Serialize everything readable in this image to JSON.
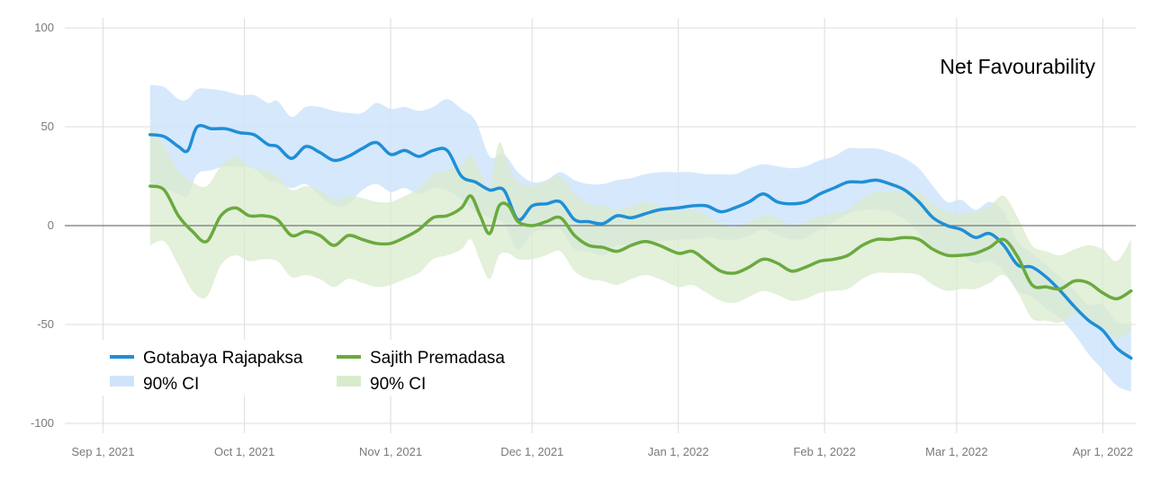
{
  "chart_data": {
    "type": "line",
    "title": "Net Favourability",
    "xlabel": "",
    "ylabel": "",
    "xlim": [
      "2021-09-01",
      "2022-04-08"
    ],
    "ylim": [
      -105,
      105
    ],
    "yticks": [
      100,
      50,
      0,
      -50,
      -100
    ],
    "ytick_labels": [
      "100",
      "50",
      "0",
      "-50",
      "-100"
    ],
    "xticks": [
      "2021-09-01",
      "2021-10-01",
      "2021-11-01",
      "2021-12-01",
      "2022-01-01",
      "2022-02-01",
      "2022-03-01",
      "2022-04-01"
    ],
    "xtick_labels": [
      "Sep 1, 2021",
      "Oct 1, 2021",
      "Nov 1, 2021",
      "Dec 1, 2021",
      "Jan 1, 2022",
      "Feb 1, 2022",
      "Mar 1, 2022",
      "Apr 1, 2022"
    ],
    "grid": true,
    "zero_line": true,
    "legend_position": "bottom-left",
    "series": [
      {
        "name": "Gotabaya Rajapaksa",
        "color": "#1f8fd6",
        "ci_label": "90% CI",
        "ci_color": "#cfe4fb",
        "x": [
          "2021-09-11",
          "2021-09-14",
          "2021-09-17",
          "2021-09-19",
          "2021-09-21",
          "2021-09-24",
          "2021-09-27",
          "2021-09-30",
          "2021-10-03",
          "2021-10-06",
          "2021-10-08",
          "2021-10-11",
          "2021-10-14",
          "2021-10-17",
          "2021-10-20",
          "2021-10-23",
          "2021-10-26",
          "2021-10-29",
          "2021-11-01",
          "2021-11-04",
          "2021-11-07",
          "2021-11-10",
          "2021-11-13",
          "2021-11-16",
          "2021-11-19",
          "2021-11-22",
          "2021-11-25",
          "2021-11-28",
          "2021-12-01",
          "2021-12-04",
          "2021-12-07",
          "2021-12-10",
          "2021-12-13",
          "2021-12-16",
          "2021-12-19",
          "2021-12-22",
          "2021-12-25",
          "2021-12-28",
          "2022-01-01",
          "2022-01-04",
          "2022-01-07",
          "2022-01-10",
          "2022-01-13",
          "2022-01-16",
          "2022-01-19",
          "2022-01-22",
          "2022-01-25",
          "2022-01-28",
          "2022-01-31",
          "2022-02-03",
          "2022-02-06",
          "2022-02-09",
          "2022-02-12",
          "2022-02-15",
          "2022-02-18",
          "2022-02-21",
          "2022-02-24",
          "2022-02-27",
          "2022-03-02",
          "2022-03-05",
          "2022-03-08",
          "2022-03-11",
          "2022-03-14",
          "2022-03-17",
          "2022-03-20",
          "2022-03-23",
          "2022-03-26",
          "2022-03-29",
          "2022-04-01",
          "2022-04-04",
          "2022-04-07"
        ],
        "values": [
          46,
          45,
          40,
          38,
          50,
          49,
          49,
          47,
          46,
          41,
          40,
          34,
          40,
          37,
          33,
          35,
          39,
          42,
          36,
          38,
          35,
          38,
          38,
          25,
          22,
          18,
          18,
          3,
          10,
          11,
          12,
          3,
          2,
          1,
          5,
          4,
          6,
          8,
          9,
          10,
          10,
          7,
          9,
          12,
          16,
          12,
          11,
          12,
          16,
          19,
          22,
          22,
          23,
          21,
          18,
          12,
          4,
          0,
          -2,
          -6,
          -4,
          -10,
          -20,
          -21,
          -26,
          -33,
          -41,
          -48,
          -53,
          -62,
          -67
        ],
        "ci_upper": [
          71,
          70,
          64,
          64,
          69,
          69,
          68,
          66,
          66,
          62,
          63,
          55,
          60,
          60,
          58,
          57,
          57,
          62,
          59,
          60,
          58,
          60,
          64,
          59,
          53,
          35,
          36,
          27,
          22,
          23,
          27,
          23,
          21,
          21,
          23,
          24,
          26,
          27,
          27,
          27,
          26,
          26,
          26,
          29,
          31,
          30,
          29,
          30,
          33,
          35,
          39,
          39,
          39,
          37,
          34,
          29,
          20,
          12,
          13,
          8,
          12,
          7,
          -8,
          -14,
          -20,
          -26,
          -33,
          -40,
          -40,
          -49,
          -49
        ],
        "ci_lower": [
          22,
          19,
          16,
          15,
          26,
          28,
          30,
          30,
          29,
          23,
          22,
          19,
          21,
          15,
          10,
          11,
          18,
          21,
          17,
          19,
          16,
          19,
          18,
          13,
          7,
          4,
          1,
          -12,
          -4,
          -2,
          -2,
          -12,
          -13,
          -15,
          -10,
          -10,
          -9,
          -8,
          -7,
          -7,
          -6,
          -7,
          -7,
          -5,
          -2,
          -5,
          -7,
          -6,
          -2,
          2,
          6,
          8,
          8,
          7,
          3,
          -4,
          -12,
          -14,
          -15,
          -19,
          -18,
          -23,
          -33,
          -36,
          -42,
          -47,
          -55,
          -65,
          -73,
          -81,
          -84
        ]
      },
      {
        "name": "Sajith Premadasa",
        "color": "#6aaa3e",
        "ci_label": "90% CI",
        "ci_color": "#d9ebcd",
        "x": [
          "2021-09-11",
          "2021-09-14",
          "2021-09-17",
          "2021-09-20",
          "2021-09-23",
          "2021-09-26",
          "2021-09-29",
          "2021-10-02",
          "2021-10-05",
          "2021-10-08",
          "2021-10-11",
          "2021-10-14",
          "2021-10-17",
          "2021-10-20",
          "2021-10-23",
          "2021-10-26",
          "2021-10-29",
          "2021-11-01",
          "2021-11-04",
          "2021-11-07",
          "2021-11-10",
          "2021-11-13",
          "2021-11-16",
          "2021-11-18",
          "2021-11-20",
          "2021-11-22",
          "2021-11-24",
          "2021-11-26",
          "2021-11-28",
          "2021-12-01",
          "2021-12-04",
          "2021-12-07",
          "2021-12-10",
          "2021-12-13",
          "2021-12-16",
          "2021-12-19",
          "2021-12-22",
          "2021-12-25",
          "2021-12-28",
          "2022-01-01",
          "2022-01-04",
          "2022-01-07",
          "2022-01-10",
          "2022-01-13",
          "2022-01-16",
          "2022-01-19",
          "2022-01-22",
          "2022-01-25",
          "2022-01-28",
          "2022-01-31",
          "2022-02-03",
          "2022-02-06",
          "2022-02-09",
          "2022-02-12",
          "2022-02-15",
          "2022-02-18",
          "2022-02-21",
          "2022-02-24",
          "2022-02-27",
          "2022-03-02",
          "2022-03-05",
          "2022-03-08",
          "2022-03-11",
          "2022-03-14",
          "2022-03-17",
          "2022-03-20",
          "2022-03-23",
          "2022-03-26",
          "2022-03-29",
          "2022-04-01",
          "2022-04-04",
          "2022-04-07"
        ],
        "values": [
          20,
          18,
          5,
          -3,
          -8,
          5,
          9,
          5,
          5,
          3,
          -5,
          -3,
          -5,
          -10,
          -5,
          -7,
          -9,
          -9,
          -6,
          -2,
          4,
          5,
          9,
          15,
          5,
          -4,
          10,
          10,
          2,
          0,
          2,
          4,
          -5,
          -10,
          -11,
          -13,
          -10,
          -8,
          -10,
          -14,
          -13,
          -18,
          -23,
          -24,
          -21,
          -17,
          -19,
          -23,
          -21,
          -18,
          -17,
          -15,
          -10,
          -7,
          -7,
          -6,
          -7,
          -12,
          -15,
          -15,
          -14,
          -11,
          -7,
          -16,
          -30,
          -31,
          -32,
          -28,
          -29,
          -34,
          -37,
          -33
        ],
        "ci_upper": [
          50,
          40,
          28,
          22,
          20,
          30,
          35,
          30,
          28,
          25,
          18,
          20,
          18,
          13,
          15,
          14,
          12,
          12,
          15,
          19,
          26,
          28,
          30,
          36,
          27,
          20,
          42,
          30,
          22,
          20,
          22,
          25,
          16,
          11,
          10,
          8,
          10,
          12,
          10,
          7,
          8,
          5,
          1,
          -1,
          2,
          5,
          4,
          0,
          2,
          5,
          6,
          8,
          14,
          17,
          17,
          18,
          17,
          11,
          7,
          6,
          7,
          10,
          15,
          4,
          -10,
          -13,
          -15,
          -12,
          -10,
          -12,
          -18,
          -7
        ],
        "ci_lower": [
          -10,
          -8,
          -20,
          -33,
          -36,
          -20,
          -15,
          -18,
          -17,
          -18,
          -26,
          -25,
          -27,
          -31,
          -27,
          -29,
          -31,
          -30,
          -27,
          -24,
          -17,
          -15,
          -12,
          -7,
          -18,
          -27,
          -15,
          -14,
          -17,
          -17,
          -15,
          -13,
          -23,
          -27,
          -28,
          -30,
          -27,
          -25,
          -27,
          -31,
          -30,
          -34,
          -38,
          -39,
          -36,
          -33,
          -35,
          -38,
          -37,
          -34,
          -33,
          -32,
          -27,
          -24,
          -24,
          -24,
          -25,
          -30,
          -33,
          -32,
          -32,
          -29,
          -25,
          -34,
          -47,
          -48,
          -49,
          -45,
          -48,
          -52,
          -57,
          -53
        ]
      }
    ]
  }
}
